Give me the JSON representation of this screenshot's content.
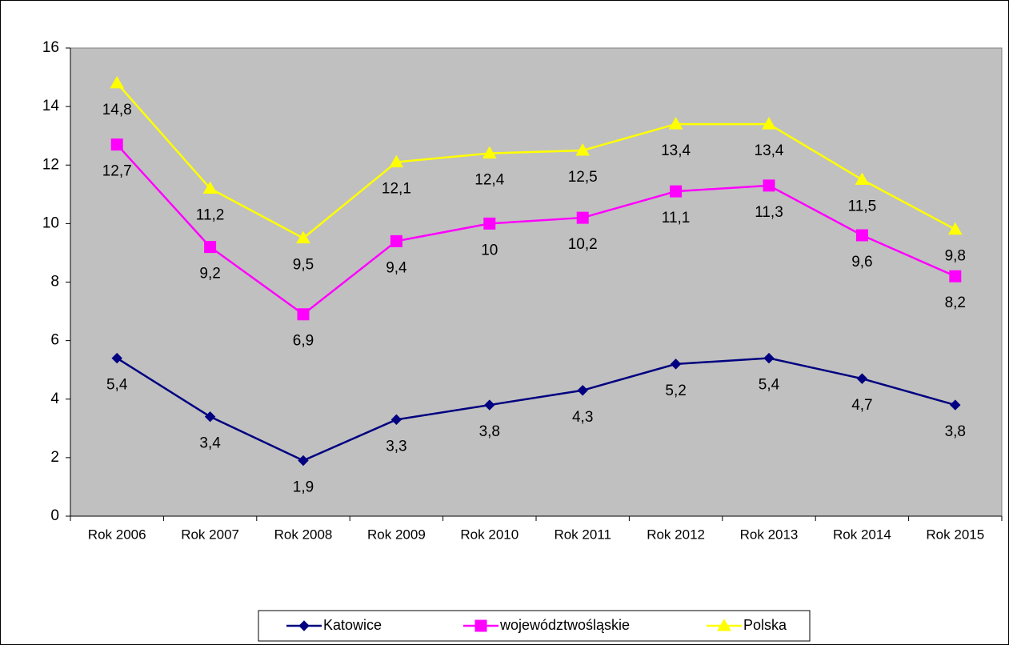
{
  "chart_data": {
    "type": "line",
    "categories": [
      "Rok 2006",
      "Rok 2007",
      "Rok 2008",
      "Rok 2009",
      "Rok 2010",
      "Rok 2011",
      "Rok 2012",
      "Rok 2013",
      "Rok 2014",
      "Rok 2015"
    ],
    "series": [
      {
        "name": "Katowice",
        "color": "#000080",
        "marker": "diamond",
        "values": [
          5.4,
          3.4,
          1.9,
          3.3,
          3.8,
          4.3,
          5.2,
          5.4,
          4.7,
          3.8
        ],
        "value_labels": [
          "5,4",
          "3,4",
          "1,9",
          "3,3",
          "3,8",
          "4,3",
          "5,2",
          "5,4",
          "4,7",
          "3,8"
        ]
      },
      {
        "name": "województwośląskie",
        "color": "#ff00ff",
        "marker": "square",
        "values": [
          12.7,
          9.2,
          6.9,
          9.4,
          10,
          10.2,
          11.1,
          11.3,
          9.6,
          8.2
        ],
        "value_labels": [
          "12,7",
          "9,2",
          "6,9",
          "9,4",
          "10",
          "10,2",
          "11,1",
          "11,3",
          "9,6",
          "8,2"
        ]
      },
      {
        "name": "Polska",
        "color": "#ffff00",
        "marker": "triangle",
        "values": [
          14.8,
          11.2,
          9.5,
          12.1,
          12.4,
          12.5,
          13.4,
          13.4,
          11.5,
          9.8
        ],
        "value_labels": [
          "14,8",
          "11,2",
          "9,5",
          "12,1",
          "12,4",
          "12,5",
          "13,4",
          "13,4",
          "11,5",
          "9,8"
        ]
      }
    ],
    "ylim": [
      0,
      16
    ],
    "yticks": [
      0,
      2,
      4,
      6,
      8,
      10,
      12,
      14,
      16
    ],
    "plot_background": "#c0c0c0",
    "legend": "bottom"
  }
}
